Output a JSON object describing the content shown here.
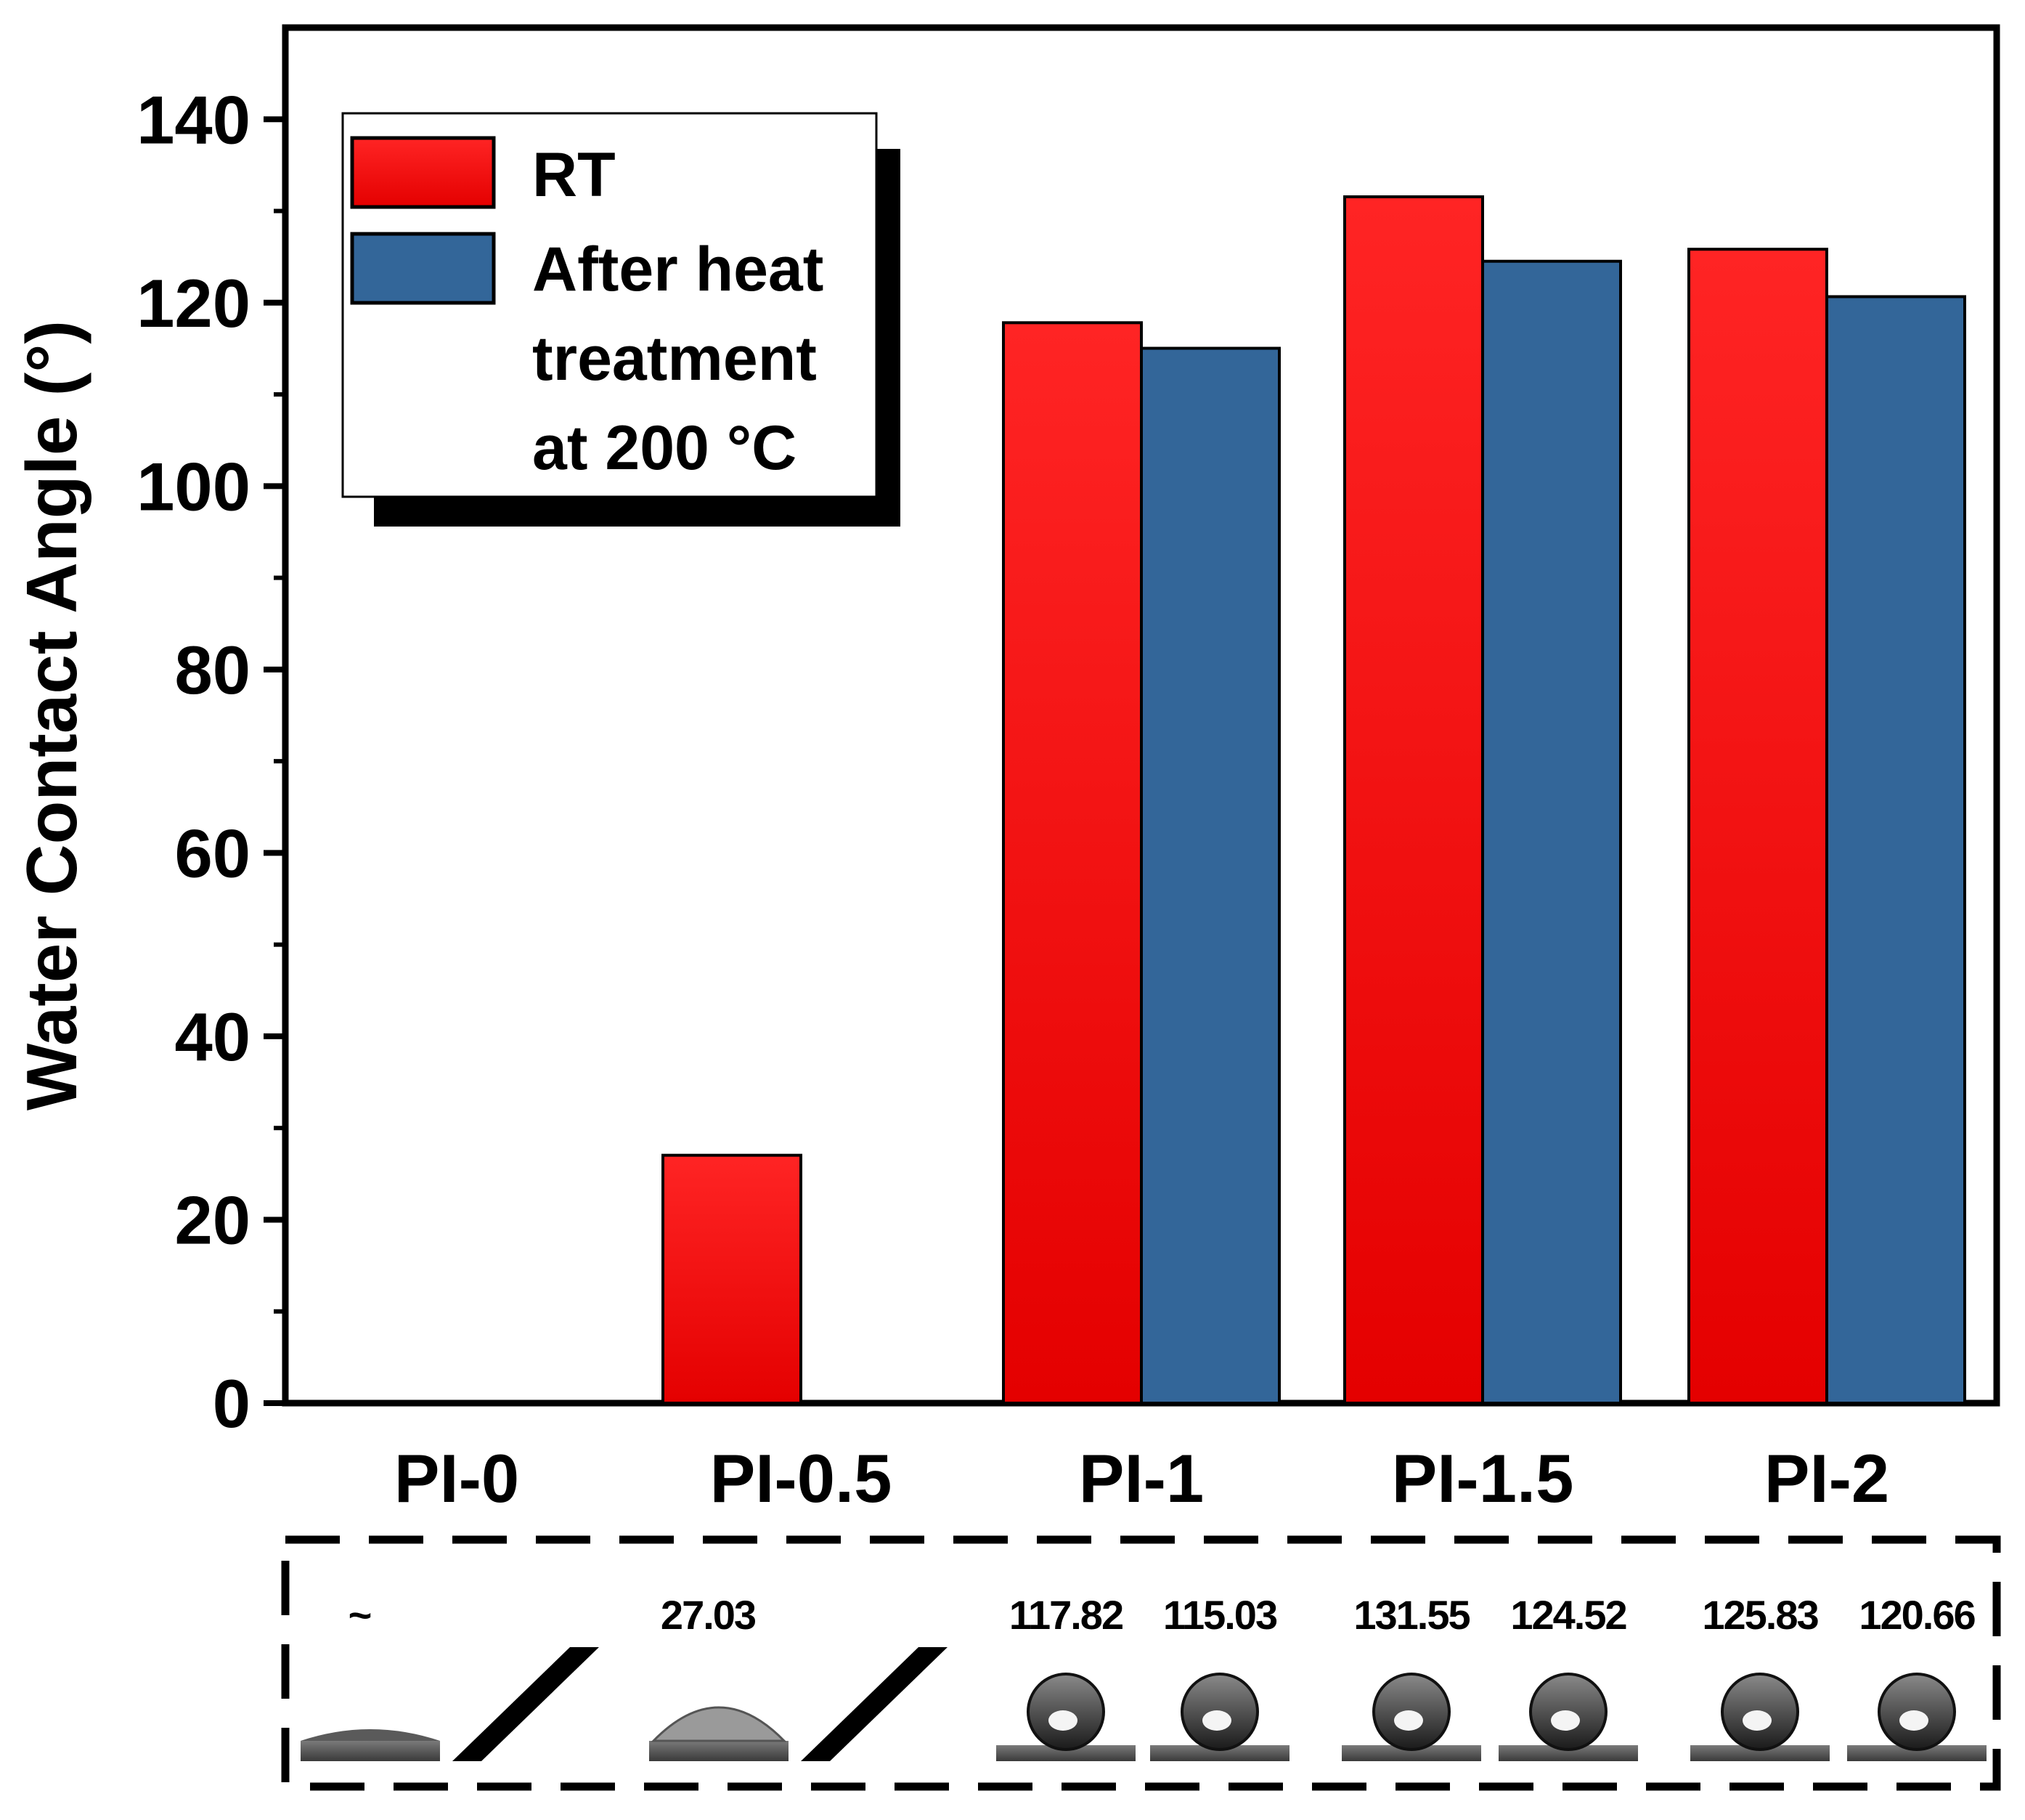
{
  "chart_data": {
    "type": "bar",
    "title": "",
    "xlabel": "",
    "ylabel": "Water Contact Angle (°)",
    "categories": [
      "PI-0",
      "PI-0.5",
      "PI-1",
      "PI-1.5",
      "PI-2"
    ],
    "ylim": [
      0,
      150
    ],
    "yticks": [
      0,
      20,
      40,
      60,
      80,
      100,
      120,
      140
    ],
    "grid": false,
    "legend_position": "top-left",
    "series": [
      {
        "name": "RT",
        "color": "#ee1c1c",
        "values": [
          null,
          27.03,
          117.82,
          131.55,
          125.83
        ]
      },
      {
        "name": "After heat treatment at 200 °C",
        "color": "#336699",
        "values": [
          null,
          null,
          115.03,
          124.52,
          120.66
        ]
      }
    ],
    "legend_lines": [
      [
        "RT"
      ],
      [
        "After heat",
        "treatment",
        "at 200 °C"
      ]
    ],
    "inset": {
      "labels": [
        [
          "~",
          ""
        ],
        [
          "27.03",
          ""
        ],
        [
          "117.82",
          "115.03"
        ],
        [
          "131.55",
          "124.52"
        ],
        [
          "125.83",
          "120.66"
        ]
      ],
      "droplets": [
        [
          "film",
          "none"
        ],
        [
          "cap",
          "none"
        ],
        [
          "sphere",
          "sphere"
        ],
        [
          "sphere",
          "sphere"
        ],
        [
          "sphere",
          "sphere"
        ]
      ]
    }
  }
}
